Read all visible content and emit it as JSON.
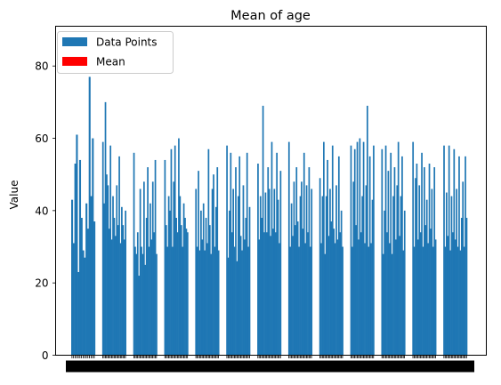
{
  "chart_data": {
    "type": "bar",
    "title": "Mean of age",
    "xlabel": "",
    "ylabel": "Value",
    "ylim": [
      0,
      91
    ],
    "yticks": [
      0,
      20,
      40,
      60,
      80
    ],
    "grid": false,
    "legend_position": "upper-left",
    "legend": [
      {
        "label": "Data Points",
        "color": "#1f77b4"
      },
      {
        "label": "Mean",
        "color": "#ff0000"
      }
    ],
    "series": [
      {
        "name": "Data Points",
        "color": "#1f77b4",
        "groups": [
          [
            43,
            31,
            53,
            61,
            23,
            54,
            38,
            29,
            27,
            42,
            35,
            77,
            44,
            60,
            37
          ],
          [
            59,
            42,
            70,
            50,
            47,
            35,
            58,
            32,
            44,
            38,
            33,
            47,
            36,
            55,
            31,
            41,
            36,
            32,
            40
          ],
          [
            56,
            30,
            28,
            34,
            22,
            46,
            30,
            28,
            48,
            25,
            38,
            52,
            30,
            42,
            32,
            48,
            34,
            54,
            28
          ],
          [
            54,
            36,
            30,
            44,
            40,
            57,
            30,
            48,
            58,
            38,
            34,
            60,
            44,
            36,
            30,
            42,
            38,
            35,
            34
          ],
          [
            46,
            30,
            51,
            29,
            40,
            32,
            42,
            29,
            38,
            31,
            57,
            36,
            28,
            46,
            50,
            30,
            41,
            52,
            29
          ],
          [
            58,
            27,
            40,
            56,
            34,
            46,
            30,
            52,
            26,
            44,
            55,
            33,
            29,
            47,
            32,
            38,
            56,
            30,
            41
          ],
          [
            53,
            32,
            44,
            38,
            69,
            34,
            45,
            34,
            52,
            46,
            33,
            59,
            35,
            46,
            34,
            56,
            43,
            31,
            51
          ],
          [
            59,
            30,
            42,
            33,
            48,
            36,
            52,
            37,
            30,
            44,
            48,
            35,
            56,
            31,
            47,
            34,
            52,
            30,
            46
          ],
          [
            49,
            31,
            44,
            59,
            28,
            44,
            54,
            33,
            46,
            37,
            58,
            35,
            31,
            47,
            32,
            55,
            34,
            40,
            30
          ],
          [
            58,
            30,
            48,
            57,
            36,
            59,
            32,
            60,
            34,
            44,
            59,
            31,
            47,
            69,
            30,
            55,
            31,
            43,
            58
          ],
          [
            57,
            28,
            40,
            58,
            34,
            51,
            31,
            56,
            28,
            44,
            52,
            32,
            47,
            59,
            33,
            44,
            55,
            29,
            40
          ],
          [
            59,
            30,
            49,
            53,
            32,
            47,
            34,
            56,
            30,
            52,
            36,
            43,
            31,
            53,
            35,
            46,
            30,
            52,
            32
          ],
          [
            58,
            30,
            45,
            33,
            58,
            29,
            44,
            34,
            57,
            32,
            46,
            30,
            55,
            29,
            38,
            48,
            30,
            55,
            38
          ]
        ]
      }
    ]
  }
}
